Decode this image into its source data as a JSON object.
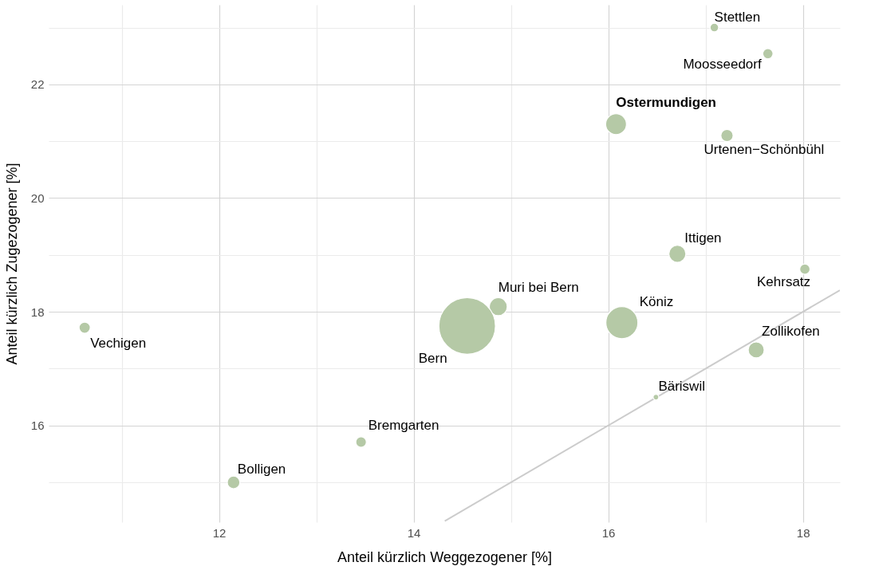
{
  "chart_data": {
    "type": "bubble",
    "xlabel": "Anteil kürzlich Weggezogener [%]",
    "ylabel": "Anteil kürzlich Zugezogener [%]",
    "xlim": [
      10.25,
      18.38
    ],
    "ylim": [
      14.3,
      23.4
    ],
    "xticks": [
      {
        "value": 11,
        "label": null
      },
      12,
      {
        "value": 13,
        "label": null
      },
      14,
      {
        "value": 15,
        "label": null
      },
      16,
      {
        "value": 17,
        "label": null
      },
      18
    ],
    "yticks": [
      {
        "value": 15,
        "label": null
      },
      16,
      {
        "value": 17,
        "label": null
      },
      18,
      {
        "value": 19,
        "label": null
      },
      20,
      {
        "value": 21,
        "label": null
      },
      22,
      {
        "value": 23,
        "label": null
      }
    ],
    "grid": true,
    "legend": false,
    "series": [
      {
        "name": "Stettlen",
        "color": "#b5c9a6",
        "x": [
          17.09
        ],
        "values": [
          23.0
        ],
        "sizes": [
          0.023
        ]
      },
      {
        "name": "Moosseedorf",
        "color": "#b5c9a6",
        "x": [
          17.64
        ],
        "values": [
          22.54
        ],
        "sizes": [
          0.033
        ]
      },
      {
        "name": "Ostermundigen",
        "color": "#b5c9a6",
        "x": [
          16.08
        ],
        "values": [
          21.3
        ],
        "sizes": [
          0.135
        ]
      },
      {
        "name": "Urtenen−Schönbühl",
        "color": "#b5c9a6",
        "x": [
          17.22
        ],
        "values": [
          21.1
        ],
        "sizes": [
          0.047
        ]
      },
      {
        "name": "Ittigen",
        "color": "#b5c9a6",
        "x": [
          16.71
        ],
        "values": [
          19.02
        ],
        "sizes": [
          0.09
        ]
      },
      {
        "name": "Kehrsatz",
        "color": "#b5c9a6",
        "x": [
          18.02
        ],
        "values": [
          18.75
        ],
        "sizes": [
          0.033
        ]
      },
      {
        "name": "Muri bei Bern",
        "color": "#b5c9a6",
        "x": [
          14.87
        ],
        "values": [
          18.09
        ],
        "sizes": [
          0.1
        ]
      },
      {
        "name": "Köniz",
        "color": "#b5c9a6",
        "x": [
          16.14
        ],
        "values": [
          17.81
        ],
        "sizes": [
          0.32
        ]
      },
      {
        "name": "Vechigen",
        "color": "#b5c9a6",
        "x": [
          10.62
        ],
        "values": [
          17.72
        ],
        "sizes": [
          0.039
        ]
      },
      {
        "name": "Bern",
        "color": "#b5c9a6",
        "x": [
          14.55
        ],
        "values": [
          17.75
        ],
        "sizes": [
          1
        ]
      },
      {
        "name": "Zollikofen",
        "color": "#b5c9a6",
        "x": [
          17.52
        ],
        "values": [
          17.33
        ],
        "sizes": [
          0.08
        ]
      },
      {
        "name": "Bäriswil",
        "color": "#b5c9a6",
        "x": [
          16.49
        ],
        "values": [
          16.5
        ],
        "sizes": [
          0.01
        ]
      },
      {
        "name": "Bremgarten",
        "color": "#b5c9a6",
        "x": [
          13.46
        ],
        "values": [
          15.71
        ],
        "sizes": [
          0.035
        ]
      },
      {
        "name": "Bolligen",
        "color": "#b5c9a6",
        "x": [
          12.15
        ],
        "values": [
          15.0
        ],
        "sizes": [
          0.05
        ]
      },
      {
        "type": "line",
        "color": "#cccccc",
        "x": [
          14.32,
          18.38
        ],
        "values": [
          14.32,
          18.38
        ]
      }
    ]
  }
}
